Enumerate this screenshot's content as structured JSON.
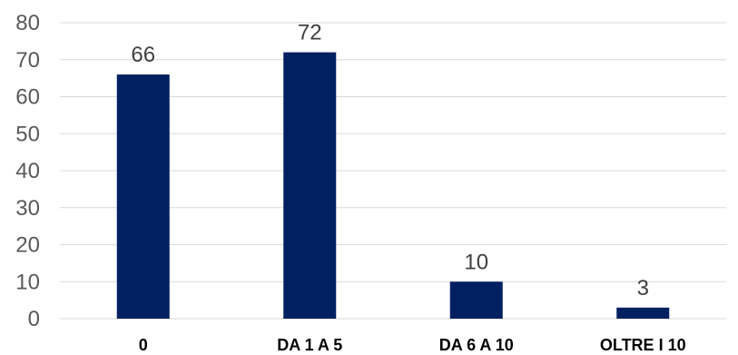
{
  "chart_data": {
    "type": "bar",
    "title": "",
    "xlabel": "",
    "ylabel": "",
    "categories": [
      "0",
      "DA 1 A 5",
      "DA 6 A 10",
      "OLTRE I 10"
    ],
    "values": [
      66,
      72,
      10,
      3
    ],
    "data_labels": [
      "66",
      "72",
      "10",
      "3"
    ],
    "ylim": [
      0,
      80
    ],
    "yticks": [
      0,
      10,
      20,
      30,
      40,
      50,
      60,
      70,
      80
    ],
    "grid": true,
    "legend": "none",
    "bar_color": "#002060"
  }
}
